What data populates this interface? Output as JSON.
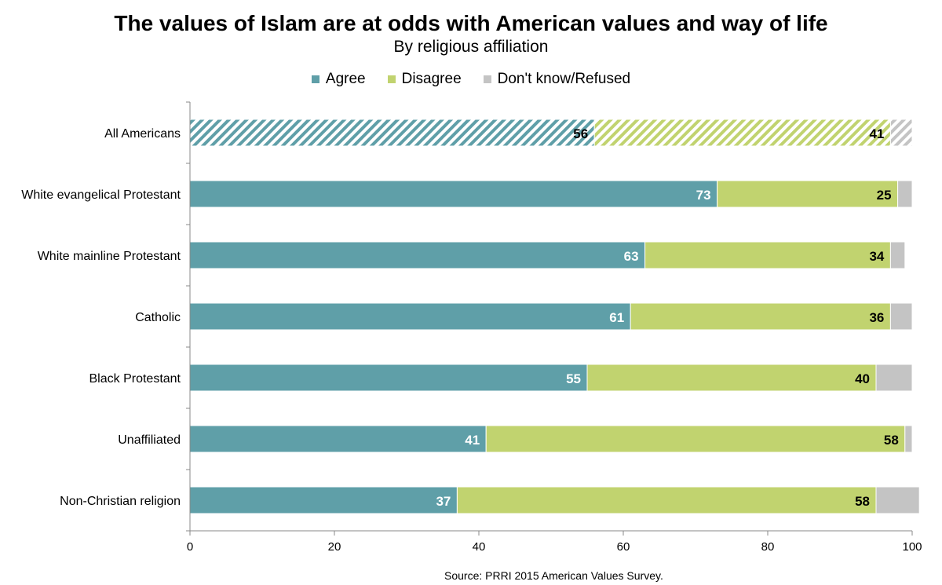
{
  "chart_data": {
    "type": "bar",
    "orientation": "horizontal",
    "stacked": true,
    "title": "The values of Islam are at odds with American values and way of life",
    "subtitle": "By religious affiliation",
    "categories": [
      "All Americans",
      "White evangelical Protestant",
      "White mainline Protestant",
      "Catholic",
      "Black Protestant",
      "Unaffiliated",
      "Non-Christian religion"
    ],
    "series": [
      {
        "name": "Agree",
        "color": "#5f9fa8",
        "values": [
          56,
          73,
          63,
          61,
          55,
          41,
          37
        ],
        "label_color": "#ffffff"
      },
      {
        "name": "Disagree",
        "color": "#c1d36f",
        "values": [
          41,
          25,
          34,
          36,
          40,
          58,
          58
        ],
        "label_color": "#000000"
      },
      {
        "name": "Don't know/Refused",
        "color": "#c4c4c4",
        "values": [
          3,
          2,
          2,
          3,
          5,
          1,
          6
        ],
        "label_color": "#000000"
      }
    ],
    "hatched_categories": [
      "All Americans"
    ],
    "xlim": [
      0,
      100
    ],
    "xticks": [
      0,
      20,
      40,
      60,
      80,
      100
    ],
    "legend_position": "top",
    "grid": false,
    "source": "Source: PRRI 2015 American Values Survey."
  }
}
